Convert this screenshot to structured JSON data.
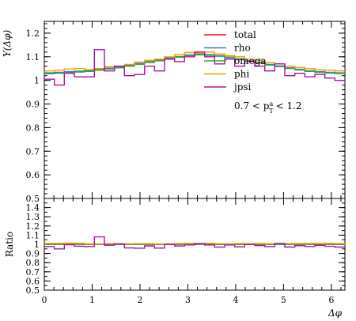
{
  "chart_data": [
    {
      "type": "line",
      "panel": "main",
      "ylabel": "Y(Δφ)",
      "ylim": [
        0.5,
        1.25
      ],
      "xlim": [
        0,
        6.283
      ],
      "yticks": [
        0.5,
        0.6,
        0.7,
        0.8,
        0.9,
        1,
        1.1,
        1.2
      ],
      "ytick_labels": [
        "0.5",
        "0.6",
        "0.7",
        "0.8",
        "0.9",
        "1",
        "1.1",
        "1.2"
      ],
      "legend_position": "top-right",
      "annotation": "0.7 < p",
      "annotation_sup": "a",
      "annotation_sub": "T",
      "annotation_tail": "< 1.2",
      "x_edges": [
        0,
        0.2094,
        0.4189,
        0.6283,
        0.8378,
        1.0472,
        1.2566,
        1.4661,
        1.6755,
        1.885,
        2.0944,
        2.3038,
        2.5133,
        2.7227,
        2.9322,
        3.1416,
        3.351,
        3.5605,
        3.7699,
        3.9794,
        4.1888,
        4.3982,
        4.6077,
        4.8171,
        5.0265,
        5.236,
        5.4454,
        5.6549,
        5.8643,
        6.0737,
        6.2832
      ],
      "series": [
        {
          "name": "total",
          "color": "#ee1111",
          "values": [
            1.03,
            1.032,
            1.035,
            1.037,
            1.04,
            1.045,
            1.05,
            1.055,
            1.062,
            1.07,
            1.078,
            1.085,
            1.093,
            1.1,
            1.107,
            1.11,
            1.108,
            1.104,
            1.098,
            1.09,
            1.082,
            1.075,
            1.067,
            1.06,
            1.052,
            1.046,
            1.04,
            1.036,
            1.033,
            1.031
          ]
        },
        {
          "name": "rho",
          "color": "#4477bb",
          "values": [
            1.032,
            1.034,
            1.037,
            1.039,
            1.042,
            1.047,
            1.052,
            1.057,
            1.064,
            1.072,
            1.08,
            1.087,
            1.095,
            1.101,
            1.108,
            1.111,
            1.109,
            1.105,
            1.099,
            1.091,
            1.083,
            1.076,
            1.068,
            1.061,
            1.053,
            1.047,
            1.041,
            1.037,
            1.034,
            1.032
          ]
        },
        {
          "name": "omega",
          "color": "#33aa33",
          "values": [
            1.028,
            1.03,
            1.033,
            1.035,
            1.038,
            1.043,
            1.048,
            1.053,
            1.06,
            1.068,
            1.076,
            1.083,
            1.091,
            1.098,
            1.105,
            1.108,
            1.106,
            1.102,
            1.096,
            1.088,
            1.08,
            1.073,
            1.065,
            1.058,
            1.05,
            1.044,
            1.038,
            1.034,
            1.031,
            1.029
          ]
        },
        {
          "name": "phi",
          "color": "#f0a000",
          "values": [
            1.04,
            1.043,
            1.048,
            1.05,
            1.045,
            1.05,
            1.058,
            1.06,
            1.068,
            1.078,
            1.085,
            1.09,
            1.1,
            1.11,
            1.118,
            1.115,
            1.12,
            1.112,
            1.105,
            1.1,
            1.09,
            1.085,
            1.075,
            1.07,
            1.06,
            1.055,
            1.05,
            1.045,
            1.043,
            1.04
          ]
        },
        {
          "name": "jpsi",
          "color": "#aa11aa",
          "values": [
            1.005,
            0.98,
            1.03,
            1.015,
            1.015,
            1.13,
            1.04,
            1.06,
            1.02,
            1.025,
            1.06,
            1.04,
            1.09,
            1.08,
            1.1,
            1.12,
            1.1,
            1.07,
            1.09,
            1.06,
            1.08,
            1.06,
            1.04,
            1.07,
            1.02,
            1.03,
            1.015,
            1.025,
            1.01,
            1.0
          ]
        }
      ]
    },
    {
      "type": "line",
      "panel": "ratio",
      "ylabel": "Ratio",
      "xlabel": "Δφ",
      "ylim": [
        0.5,
        1.5
      ],
      "xlim": [
        0,
        6.283
      ],
      "yticks": [
        0.5,
        0.6,
        0.7,
        0.8,
        0.9,
        1,
        1.1,
        1.2,
        1.3,
        1.4
      ],
      "ytick_labels": [
        "0.5",
        "0.6",
        "0.7",
        "0.8",
        "0.9",
        "1",
        "1.1",
        "1.2",
        "1.3",
        "1.4"
      ],
      "xticks": [
        0,
        1,
        2,
        3,
        4,
        5,
        6
      ],
      "xtick_labels": [
        "0",
        "1",
        "2",
        "3",
        "4",
        "5",
        "6"
      ],
      "series": [
        {
          "name": "total",
          "color": "#ee1111",
          "values": [
            1,
            1,
            1,
            1,
            1,
            1,
            1,
            1,
            1,
            1,
            1,
            1,
            1,
            1,
            1,
            1,
            1,
            1,
            1,
            1,
            1,
            1,
            1,
            1,
            1,
            1,
            1,
            1,
            1,
            1
          ]
        },
        {
          "name": "rho",
          "color": "#4477bb",
          "values": [
            1.002,
            1.002,
            1.002,
            1.002,
            1.002,
            1.002,
            1.002,
            1.002,
            1.002,
            1.002,
            1.002,
            1.002,
            1.002,
            1.001,
            1.001,
            1.001,
            1.001,
            1.001,
            1.001,
            1.001,
            1.001,
            1.001,
            1.001,
            1.001,
            1.001,
            1.001,
            1.001,
            1.001,
            1.001,
            1.001
          ]
        },
        {
          "name": "omega",
          "color": "#33aa33",
          "values": [
            0.998,
            0.998,
            0.998,
            0.998,
            0.998,
            0.998,
            0.998,
            0.998,
            0.998,
            0.998,
            0.998,
            0.998,
            0.998,
            0.998,
            0.998,
            0.998,
            0.998,
            0.998,
            0.998,
            0.998,
            0.998,
            0.998,
            0.998,
            0.998,
            0.998,
            0.998,
            0.998,
            0.998,
            0.998,
            0.998
          ]
        },
        {
          "name": "phi",
          "color": "#f0a000",
          "values": [
            1.01,
            1.011,
            1.013,
            1.012,
            1.005,
            1.005,
            1.008,
            1.005,
            1.006,
            1.007,
            1.007,
            1.005,
            1.006,
            1.009,
            1.01,
            1.005,
            1.011,
            1.007,
            1.006,
            1.009,
            1.007,
            1.009,
            1.007,
            1.009,
            1.008,
            1.009,
            1.01,
            1.009,
            1.01,
            1.009
          ]
        },
        {
          "name": "jpsi",
          "color": "#aa11aa",
          "values": [
            0.976,
            0.95,
            0.995,
            0.979,
            0.976,
            1.081,
            0.99,
            1.005,
            0.96,
            0.958,
            0.983,
            0.959,
            0.997,
            0.982,
            0.993,
            1.009,
            0.993,
            0.969,
            0.993,
            0.972,
            0.998,
            0.986,
            0.975,
            1.009,
            0.97,
            0.985,
            0.976,
            0.989,
            0.978,
            0.97
          ]
        }
      ]
    }
  ]
}
